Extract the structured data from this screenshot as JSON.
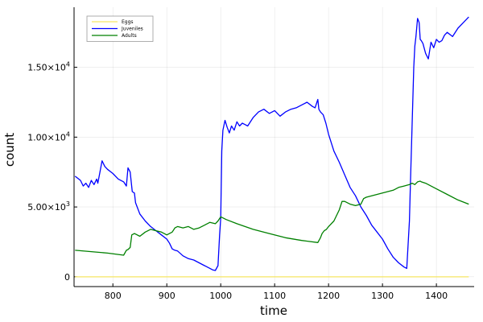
{
  "chart_data": {
    "type": "line",
    "xlabel": "time",
    "ylabel": "count",
    "xlim": [
      728,
      1470
    ],
    "ylim": [
      -700,
      19300
    ],
    "xticks": [
      800,
      900,
      1000,
      1100,
      1200,
      1300,
      1400
    ],
    "xtick_labels": [
      "800",
      "900",
      "1000",
      "1100",
      "1200",
      "1300",
      "1400"
    ],
    "yticks": [
      0,
      5000,
      10000,
      15000
    ],
    "ytick_labels": [
      {
        "mantissa": "0",
        "exponent": ""
      },
      {
        "mantissa": "5.00×10",
        "exponent": "3"
      },
      {
        "mantissa": "1.00×10",
        "exponent": "4"
      },
      {
        "mantissa": "1.50×10",
        "exponent": "4"
      }
    ],
    "grid": true,
    "legend_position": "top-left",
    "series": [
      {
        "name": "Eggs",
        "color": "#f5e663",
        "x": [
          730,
          1460
        ],
        "y": [
          0,
          0
        ]
      },
      {
        "name": "Juveniles",
        "color": "#0000ff",
        "x": [
          730,
          740,
          745,
          750,
          755,
          760,
          765,
          770,
          772,
          775,
          780,
          785,
          790,
          800,
          810,
          820,
          825,
          828,
          832,
          836,
          840,
          842,
          845,
          850,
          860,
          870,
          880,
          890,
          900,
          905,
          910,
          915,
          920,
          930,
          940,
          950,
          960,
          970,
          980,
          985,
          990,
          995,
          998,
          1000,
          1002,
          1004,
          1008,
          1012,
          1016,
          1020,
          1025,
          1030,
          1035,
          1040,
          1045,
          1050,
          1060,
          1070,
          1080,
          1090,
          1100,
          1110,
          1120,
          1130,
          1140,
          1150,
          1160,
          1170,
          1175,
          1180,
          1182,
          1185,
          1190,
          1195,
          1200,
          1210,
          1220,
          1230,
          1240,
          1250,
          1260,
          1270,
          1280,
          1290,
          1300,
          1310,
          1320,
          1330,
          1340,
          1345,
          1350,
          1352,
          1355,
          1358,
          1360,
          1362,
          1365,
          1368,
          1370,
          1372,
          1375,
          1380,
          1385,
          1390,
          1395,
          1400,
          1405,
          1410,
          1415,
          1420,
          1430,
          1440,
          1450,
          1460
        ],
        "y": [
          7200,
          6900,
          6500,
          6700,
          6400,
          6900,
          6600,
          7000,
          6700,
          7300,
          8300,
          7900,
          7700,
          7400,
          7000,
          6800,
          6500,
          7800,
          7500,
          6100,
          6000,
          5300,
          5000,
          4500,
          4000,
          3600,
          3300,
          3000,
          2700,
          2400,
          2000,
          1900,
          1850,
          1500,
          1300,
          1200,
          1000,
          800,
          600,
          500,
          450,
          800,
          3000,
          4200,
          9000,
          10500,
          11200,
          10700,
          10300,
          10800,
          10500,
          11100,
          10800,
          11000,
          10900,
          10800,
          11400,
          11800,
          12000,
          11700,
          11900,
          11500,
          11800,
          12000,
          12100,
          12300,
          12500,
          12200,
          12100,
          12700,
          12000,
          11800,
          11600,
          11000,
          10200,
          9000,
          8200,
          7300,
          6400,
          5800,
          5000,
          4400,
          3700,
          3200,
          2700,
          2000,
          1400,
          1000,
          700,
          600,
          4000,
          7000,
          11000,
          15000,
          16500,
          17200,
          18500,
          18200,
          17000,
          16900,
          16700,
          16000,
          15600,
          16800,
          16400,
          17000,
          16800,
          16900,
          17300,
          17500,
          17200,
          17800,
          18200,
          18600
        ]
      },
      {
        "name": "Adults",
        "color": "#008000",
        "x": [
          730,
          760,
          790,
          820,
          825,
          828,
          832,
          835,
          840,
          850,
          860,
          870,
          880,
          890,
          900,
          910,
          915,
          920,
          930,
          940,
          950,
          960,
          970,
          980,
          990,
          995,
          1000,
          1010,
          1030,
          1060,
          1090,
          1120,
          1150,
          1180,
          1185,
          1188,
          1192,
          1196,
          1200,
          1210,
          1220,
          1225,
          1230,
          1240,
          1250,
          1260,
          1265,
          1270,
          1280,
          1290,
          1300,
          1310,
          1320,
          1330,
          1340,
          1350,
          1355,
          1360,
          1365,
          1370,
          1372,
          1380,
          1400,
          1420,
          1440,
          1460
        ],
        "y": [
          1900,
          1800,
          1700,
          1550,
          1900,
          1950,
          2100,
          3000,
          3100,
          2900,
          3200,
          3400,
          3300,
          3200,
          3000,
          3200,
          3500,
          3600,
          3500,
          3600,
          3400,
          3500,
          3700,
          3900,
          3800,
          4000,
          4300,
          4100,
          3800,
          3400,
          3100,
          2800,
          2600,
          2450,
          2800,
          3100,
          3300,
          3400,
          3600,
          4000,
          4800,
          5400,
          5400,
          5200,
          5100,
          5200,
          5600,
          5700,
          5800,
          5900,
          6000,
          6100,
          6200,
          6400,
          6500,
          6600,
          6700,
          6600,
          6800,
          6850,
          6800,
          6700,
          6300,
          5900,
          5500,
          5200
        ]
      }
    ]
  }
}
